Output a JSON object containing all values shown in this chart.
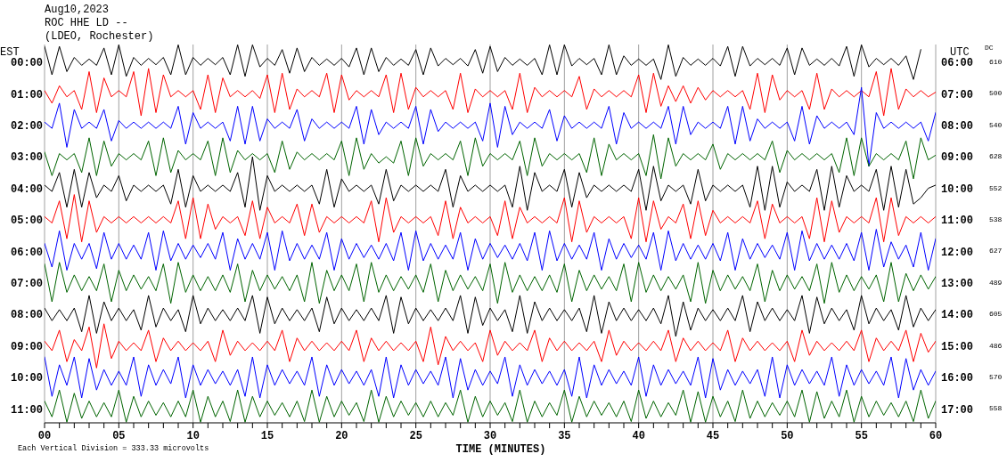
{
  "chart_data": {
    "type": "line",
    "title": "Aug10,2023",
    "subtitle": "ROC HHE LD --\n(LDEO, Rochester)",
    "xlabel": "TIME (MINUTES)",
    "ylabel": "EST",
    "y2label": "UTC",
    "annotations": [
      "Each Vertical Division = 333.33 microvolts",
      "DC",
      "610",
      "500",
      "540",
      "628",
      "552",
      "538",
      "627",
      "489",
      "605",
      "486",
      "570",
      "558"
    ],
    "x": [
      0,
      0.5,
      1,
      1.5,
      2,
      2.5,
      3,
      3.5,
      4,
      4.5,
      5,
      5.5,
      6,
      6.5,
      7,
      7.5,
      8,
      8.5,
      9,
      9.5,
      10,
      10.5,
      11,
      11.5,
      12,
      12.5,
      13,
      13.5,
      14,
      14.5,
      15,
      15.5,
      16,
      16.5,
      17,
      17.5,
      18,
      18.5,
      19,
      19.5,
      20,
      20.5,
      21,
      21.5,
      22,
      22.5,
      23,
      23.5,
      24,
      24.5,
      25,
      25.5,
      26,
      26.5,
      27,
      27.5,
      28,
      28.5,
      29,
      29.5,
      30,
      30.5,
      31,
      31.5,
      32,
      32.5,
      33,
      33.5,
      34,
      34.5,
      35,
      35.5,
      36,
      36.5,
      37,
      37.5,
      38,
      38.5,
      39,
      39.5,
      40,
      40.5,
      41,
      41.5,
      42,
      42.5,
      43,
      43.5,
      44,
      44.5,
      45,
      45.5,
      46,
      46.5,
      47,
      47.5,
      48,
      48.5,
      49,
      49.5,
      50,
      50.5,
      51,
      51.5,
      52,
      52.5,
      53,
      53.5,
      54,
      54.5,
      55,
      55.5,
      56,
      56.5,
      57,
      57.5,
      58,
      58.5,
      59,
      59.5,
      60
    ],
    "series": [
      {
        "color": "#000000",
        "values": [
          -0.5,
          0.4,
          -0.5,
          0.3,
          -0.15,
          0.1,
          -0.1,
          0.1,
          -0.45,
          0.4,
          -0.55,
          0.45,
          -0.15,
          0.1,
          -0.12,
          0.08,
          -0.15,
          0.4,
          -0.55,
          0.4,
          -0.15,
          0.1,
          -0.12,
          0.08,
          -0.15,
          0.4,
          -0.55,
          0.45,
          -0.55,
          0.15,
          -0.12,
          0.1,
          -0.4,
          0.35,
          -0.45,
          0.3,
          -0.15,
          0.1,
          -0.1,
          0.1,
          -0.12,
          0.15,
          -0.45,
          0.4,
          -0.45,
          0.3,
          -0.15,
          0.1,
          -0.1,
          0.1,
          -0.4,
          0.4,
          -0.45,
          0.12,
          -0.12,
          0.08,
          -0.12,
          0.12,
          -0.4,
          0.35,
          -0.5,
          0.3,
          -0.15,
          0.1,
          -0.1,
          0.1,
          -0.12,
          0.4,
          -0.55,
          0.4,
          -0.55,
          0.12,
          -0.12,
          0.08,
          -0.12,
          0.4,
          -0.55,
          0.4,
          -0.2,
          0.1,
          -0.1,
          0.1,
          -0.1,
          0.55,
          -0.55,
          0.45,
          -0.15,
          0.1,
          -0.1,
          0.1,
          -0.12,
          0.12,
          -0.5,
          0.45,
          -0.5,
          0.12,
          -0.12,
          0.08,
          -0.12,
          0.1,
          -0.45,
          0.4,
          -0.45,
          0.1,
          -0.1,
          0.1,
          -0.12,
          0.12,
          -0.5,
          0.45,
          -0.55,
          0.15,
          -0.12,
          0.08,
          -0.12,
          0.1,
          -0.2,
          0.55,
          -0.4,
          null,
          null
        ]
      },
      {
        "color": "#ff0000",
        "values": [
          0.9,
          1.3,
          0.75,
          1.1,
          0.9,
          1.5,
          0.3,
          1.6,
          0.5,
          1.1,
          0.9,
          1.1,
          0.3,
          1.7,
          0.2,
          1.6,
          0.4,
          1.1,
          0.9,
          1.1,
          0.9,
          1.5,
          0.4,
          1.6,
          0.5,
          1.1,
          0.9,
          1.1,
          0.9,
          1.15,
          0.4,
          1.6,
          0.35,
          1.5,
          0.85,
          1.1,
          0.9,
          1.1,
          0.35,
          1.6,
          0.4,
          1.2,
          0.9,
          1.1,
          0.9,
          1.1,
          0.4,
          1.6,
          0.35,
          1.5,
          0.8,
          1.1,
          0.9,
          1.1,
          0.9,
          1.5,
          0.35,
          1.6,
          0.85,
          1.1,
          0.9,
          1.1,
          0.9,
          1.5,
          0.35,
          1.6,
          0.8,
          1.1,
          0.9,
          1.1,
          0.9,
          1.1,
          0.45,
          1.5,
          0.85,
          1.1,
          0.9,
          1.1,
          0.9,
          1.1,
          0.4,
          1.6,
          0.35,
          1.4,
          0.75,
          1.25,
          0.75,
          1.3,
          0.8,
          1.2,
          0.9,
          1.1,
          0.9,
          1.1,
          0.9,
          1.5,
          0.35,
          1.6,
          0.4,
          1.2,
          0.9,
          1.1,
          0.9,
          1.5,
          0.35,
          1.5,
          0.85,
          1.1,
          0.9,
          1.1,
          0.9,
          1.1,
          0.3,
          1.7,
          0.2,
          1.5,
          0.85,
          1.1,
          0.9,
          1.1,
          0.95
        ]
      },
      {
        "color": "#0000ff",
        "values": [
          1.9,
          2.1,
          1.3,
          2.7,
          1.5,
          2.1,
          1.9,
          2.1,
          1.5,
          2.5,
          1.85,
          2.1,
          1.9,
          2.1,
          1.9,
          2.1,
          1.9,
          2.1,
          1.4,
          2.6,
          1.6,
          2.1,
          1.9,
          2.1,
          1.9,
          2.5,
          1.4,
          2.6,
          1.4,
          2.5,
          1.8,
          2.1,
          1.9,
          2.1,
          1.5,
          2.5,
          1.8,
          2.1,
          1.9,
          2.1,
          1.9,
          2.1,
          1.4,
          2.6,
          1.5,
          2.3,
          1.9,
          2.1,
          1.9,
          2.1,
          1.4,
          2.6,
          1.5,
          2.2,
          1.9,
          2.1,
          1.9,
          2.1,
          1.9,
          2.5,
          1.3,
          2.7,
          1.4,
          2.3,
          1.9,
          2.1,
          1.9,
          2.1,
          1.5,
          2.5,
          1.7,
          2.1,
          1.9,
          2.1,
          1.9,
          2.1,
          1.4,
          2.6,
          1.6,
          2.1,
          1.9,
          2.1,
          1.9,
          2.1,
          1.4,
          2.6,
          1.4,
          2.3,
          1.9,
          2.1,
          1.9,
          2.1,
          1.4,
          2.6,
          1.4,
          2.5,
          1.8,
          2.1,
          1.9,
          2.1,
          1.9,
          2.5,
          1.4,
          2.6,
          1.7,
          2.1,
          1.9,
          2.1,
          1.9,
          2.3,
          0.8,
          3.3,
          1.6,
          2.1,
          1.9,
          2.1,
          1.9,
          2.1,
          1.9,
          2.5,
          1.6
        ]
      },
      {
        "color": "#006400",
        "values": [
          2.85,
          3.6,
          2.9,
          3.1,
          2.9,
          3.5,
          2.4,
          3.6,
          2.5,
          3.3,
          2.9,
          3.1,
          2.9,
          3.1,
          2.5,
          3.6,
          2.4,
          3.5,
          2.8,
          3.1,
          2.9,
          3.1,
          2.5,
          3.6,
          2.4,
          3.5,
          2.8,
          3.1,
          2.9,
          3.1,
          2.9,
          3.5,
          2.5,
          3.4,
          2.85,
          3.1,
          2.9,
          3.1,
          2.9,
          3.1,
          2.5,
          3.6,
          2.4,
          3.4,
          2.9,
          3.2,
          3.0,
          3.2,
          2.5,
          3.6,
          2.4,
          3.3,
          2.9,
          3.1,
          2.9,
          3.1,
          2.5,
          3.6,
          2.4,
          3.3,
          2.9,
          3.1,
          2.9,
          3.1,
          2.5,
          3.6,
          2.4,
          3.3,
          2.9,
          3.1,
          2.9,
          3.1,
          2.9,
          3.5,
          2.4,
          3.6,
          2.6,
          3.1,
          2.9,
          3.1,
          2.9,
          3.6,
          2.3,
          3.7,
          2.4,
          3.3,
          2.9,
          3.1,
          2.9,
          3.1,
          2.6,
          3.4,
          2.9,
          3.1,
          2.9,
          3.1,
          2.9,
          3.1,
          2.5,
          3.5,
          2.8,
          3.1,
          2.9,
          3.1,
          2.9,
          3.1,
          2.9,
          3.5,
          2.4,
          3.6,
          2.4,
          3.3,
          2.9,
          3.1,
          2.9,
          3.1,
          2.5,
          3.7,
          2.4,
          3.1,
          2.95
        ]
      },
      {
        "color": "#000000",
        "values": [
          3.9,
          4.1,
          3.5,
          4.6,
          3.4,
          4.6,
          3.5,
          4.3,
          3.9,
          4.1,
          3.6,
          4.4,
          3.9,
          4.1,
          3.9,
          4.1,
          3.9,
          4.5,
          3.4,
          4.6,
          3.6,
          4.1,
          3.9,
          4.1,
          3.9,
          4.1,
          3.5,
          4.6,
          3.0,
          4.7,
          3.6,
          4.1,
          3.9,
          4.1,
          3.9,
          4.1,
          3.9,
          4.5,
          3.4,
          4.6,
          3.7,
          4.1,
          3.9,
          4.1,
          3.9,
          4.5,
          3.4,
          4.4,
          3.9,
          4.1,
          3.9,
          4.1,
          3.9,
          4.1,
          3.4,
          4.6,
          3.6,
          4.1,
          3.9,
          4.1,
          3.9,
          4.1,
          3.9,
          4.6,
          3.3,
          4.7,
          3.5,
          4.1,
          3.9,
          4.1,
          3.4,
          4.6,
          3.5,
          4.3,
          3.9,
          4.1,
          3.9,
          4.1,
          3.9,
          4.1,
          3.4,
          4.7,
          3.3,
          4.4,
          3.9,
          4.1,
          3.9,
          4.5,
          3.4,
          4.4,
          3.9,
          4.1,
          3.9,
          4.1,
          3.9,
          4.6,
          3.3,
          4.7,
          3.3,
          4.6,
          3.8,
          4.1,
          3.9,
          4.1,
          3.4,
          4.7,
          3.3,
          4.6,
          3.6,
          4.1,
          3.9,
          4.1,
          3.4,
          4.7,
          3.3,
          4.6,
          3.4,
          4.5,
          4.3,
          4.0,
          3.9
        ]
      },
      {
        "color": "#ff0000",
        "values": [
          4.9,
          5.1,
          4.4,
          5.6,
          4.2,
          5.7,
          4.4,
          5.4,
          4.9,
          5.1,
          4.9,
          5.1,
          4.9,
          5.1,
          4.9,
          5.1,
          4.9,
          5.1,
          4.4,
          5.6,
          4.3,
          5.6,
          4.5,
          5.3,
          4.9,
          5.1,
          4.9,
          5.5,
          4.4,
          5.6,
          4.6,
          5.1,
          4.9,
          5.1,
          4.5,
          5.5,
          4.5,
          5.4,
          4.9,
          5.1,
          4.9,
          5.1,
          4.9,
          5.1,
          4.4,
          5.7,
          4.3,
          5.4,
          4.9,
          5.1,
          4.9,
          5.1,
          4.9,
          5.5,
          4.4,
          5.6,
          4.6,
          5.1,
          4.9,
          5.1,
          4.9,
          5.5,
          4.4,
          5.6,
          4.6,
          5.1,
          4.9,
          5.1,
          4.9,
          5.1,
          4.3,
          5.7,
          4.4,
          5.4,
          4.9,
          5.1,
          4.9,
          5.1,
          4.9,
          5.6,
          4.3,
          5.7,
          4.4,
          5.3,
          4.9,
          5.1,
          4.5,
          5.6,
          4.4,
          5.5,
          4.7,
          5.1,
          4.9,
          5.1,
          4.9,
          5.1,
          4.4,
          5.6,
          4.5,
          5.1,
          4.9,
          5.1,
          4.9,
          5.6,
          4.3,
          5.7,
          4.4,
          5.4,
          4.9,
          5.1,
          4.9,
          5.1,
          4.3,
          5.7,
          4.3,
          5.5,
          4.9,
          5.1,
          4.9,
          5.1,
          4.9
        ]
      },
      {
        "color": "#0000ff",
        "values": [
          5.75,
          6.5,
          5.35,
          6.6,
          5.75,
          6.25,
          5.75,
          6.55,
          5.4,
          6.25,
          5.75,
          6.25,
          5.8,
          6.25,
          5.4,
          6.6,
          5.35,
          6.3,
          5.75,
          6.25,
          5.8,
          6.2,
          5.75,
          6.25,
          5.4,
          6.6,
          5.6,
          6.25,
          5.75,
          6.25,
          5.4,
          6.6,
          5.35,
          6.3,
          5.75,
          6.25,
          5.8,
          6.25,
          5.4,
          6.6,
          5.6,
          6.25,
          5.75,
          6.2,
          5.8,
          6.25,
          5.75,
          6.3,
          5.4,
          6.6,
          5.35,
          6.3,
          5.75,
          6.25,
          5.8,
          6.25,
          5.4,
          6.6,
          5.6,
          6.25,
          5.75,
          6.2,
          5.8,
          6.25,
          5.75,
          6.3,
          5.4,
          6.6,
          5.35,
          6.3,
          5.75,
          6.25,
          5.8,
          6.25,
          5.4,
          6.6,
          5.6,
          6.25,
          5.75,
          6.2,
          5.8,
          6.25,
          5.4,
          6.6,
          5.35,
          6.3,
          5.75,
          6.25,
          5.8,
          6.25,
          5.75,
          6.3,
          5.4,
          6.6,
          5.6,
          6.25,
          5.75,
          6.2,
          5.8,
          6.25,
          5.4,
          6.6,
          5.35,
          6.3,
          5.75,
          6.25,
          5.8,
          6.25,
          5.75,
          6.3,
          5.4,
          6.6,
          5.3,
          6.5,
          5.7,
          6.25,
          5.8,
          6.5,
          5.4,
          6.6,
          5.6
        ]
      },
      {
        "color": "#006400",
        "values": [
          6.4,
          7.6,
          6.35,
          7.3,
          6.75,
          7.25,
          6.8,
          7.25,
          6.4,
          7.6,
          6.6,
          7.25,
          6.75,
          7.2,
          6.8,
          7.25,
          6.4,
          7.65,
          6.35,
          7.3,
          6.75,
          7.25,
          6.8,
          7.25,
          6.75,
          7.3,
          6.4,
          7.6,
          6.6,
          7.25,
          6.75,
          7.2,
          6.8,
          7.25,
          6.75,
          7.6,
          6.35,
          7.65,
          6.6,
          7.25,
          6.75,
          7.25,
          6.4,
          7.6,
          6.35,
          7.3,
          6.75,
          7.25,
          6.8,
          7.2,
          6.75,
          7.3,
          6.4,
          7.6,
          6.6,
          7.25,
          6.75,
          7.2,
          6.8,
          7.25,
          6.4,
          7.65,
          6.35,
          7.3,
          6.75,
          7.25,
          6.8,
          7.25,
          6.75,
          7.3,
          6.4,
          7.6,
          6.6,
          7.25,
          6.75,
          7.2,
          6.8,
          7.25,
          6.4,
          7.6,
          6.35,
          7.3,
          6.75,
          7.25,
          6.8,
          7.2,
          6.75,
          7.6,
          6.35,
          7.65,
          6.6,
          7.25,
          6.75,
          7.2,
          6.8,
          7.25,
          6.4,
          7.6,
          6.6,
          7.25,
          6.75,
          7.2,
          6.8,
          7.25,
          6.4,
          7.65,
          6.35,
          7.3,
          6.75,
          7.25,
          6.8,
          7.2,
          6.75,
          7.6,
          6.35,
          7.6,
          6.7,
          7.25,
          6.75,
          7.2,
          6.8
        ]
      },
      {
        "color": "#000000",
        "values": [
          7.8,
          8.2,
          7.85,
          8.2,
          7.8,
          8.55,
          7.4,
          8.6,
          7.6,
          8.2,
          7.8,
          8.2,
          7.85,
          8.5,
          7.4,
          8.4,
          7.8,
          8.2,
          7.85,
          8.55,
          7.4,
          8.3,
          7.8,
          8.2,
          7.85,
          8.2,
          7.8,
          8.2,
          7.4,
          8.6,
          7.45,
          8.3,
          7.8,
          8.2,
          7.85,
          8.2,
          7.8,
          8.55,
          7.45,
          8.3,
          7.8,
          8.2,
          7.85,
          8.2,
          7.8,
          8.2,
          7.4,
          8.6,
          7.45,
          8.3,
          7.8,
          8.2,
          7.85,
          8.2,
          7.8,
          8.2,
          7.4,
          8.6,
          7.45,
          8.35,
          7.8,
          8.2,
          7.85,
          8.55,
          7.4,
          8.6,
          7.6,
          8.2,
          7.8,
          8.2,
          7.85,
          8.2,
          7.8,
          8.55,
          7.4,
          8.6,
          7.6,
          8.2,
          7.8,
          8.2,
          7.85,
          8.2,
          7.8,
          8.3,
          7.4,
          8.7,
          7.6,
          8.5,
          7.8,
          8.2,
          7.85,
          8.2,
          7.8,
          8.2,
          7.4,
          8.55,
          7.6,
          8.2,
          7.8,
          8.2,
          7.85,
          8.2,
          7.4,
          8.6,
          7.45,
          8.3,
          7.8,
          8.2,
          7.85,
          8.5,
          7.4,
          8.3,
          7.8,
          8.2,
          7.85,
          8.5,
          7.4,
          8.4,
          7.8,
          8.2,
          7.85
        ]
      },
      {
        "color": "#ff0000",
        "values": [
          8.85,
          9.15,
          8.5,
          9.5,
          8.8,
          9.15,
          8.4,
          9.7,
          8.3,
          9.4,
          8.85,
          9.15,
          8.9,
          9.15,
          8.5,
          9.5,
          8.75,
          9.15,
          8.85,
          9.15,
          8.9,
          9.15,
          8.85,
          9.5,
          8.5,
          9.3,
          8.85,
          9.15,
          8.9,
          9.15,
          8.85,
          9.15,
          8.5,
          9.5,
          8.75,
          9.15,
          8.85,
          9.15,
          8.9,
          9.15,
          8.85,
          9.15,
          8.5,
          9.5,
          8.75,
          9.15,
          8.85,
          9.15,
          8.9,
          9.15,
          8.85,
          9.5,
          8.4,
          9.6,
          8.7,
          9.15,
          8.85,
          9.15,
          8.9,
          9.5,
          8.5,
          9.3,
          8.85,
          9.15,
          8.9,
          9.15,
          8.5,
          9.5,
          8.75,
          9.15,
          8.85,
          9.15,
          8.9,
          9.15,
          8.85,
          9.5,
          8.5,
          9.3,
          8.85,
          9.15,
          8.9,
          9.15,
          8.85,
          9.15,
          8.5,
          9.5,
          8.75,
          9.15,
          8.85,
          9.15,
          8.9,
          9.15,
          8.5,
          9.5,
          8.75,
          9.15,
          8.85,
          9.15,
          8.9,
          9.15,
          8.85,
          9.5,
          8.5,
          9.3,
          8.85,
          9.15,
          8.9,
          9.15,
          8.85,
          9.15,
          8.5,
          9.5,
          8.75,
          9.15,
          8.85,
          9.15,
          8.5,
          9.5,
          8.6,
          9.2,
          8.85
        ]
      },
      {
        "color": "#0000ff",
        "values": [
          9.35,
          10.6,
          9.6,
          10.25,
          9.35,
          10.65,
          9.4,
          10.4,
          9.75,
          10.25,
          9.8,
          10.25,
          9.35,
          10.6,
          9.6,
          10.25,
          9.75,
          10.2,
          9.35,
          10.65,
          9.6,
          10.25,
          9.75,
          10.2,
          9.8,
          10.25,
          9.75,
          10.6,
          9.35,
          10.65,
          9.6,
          10.25,
          9.75,
          10.2,
          9.8,
          10.25,
          9.35,
          10.6,
          9.6,
          10.25,
          9.75,
          10.2,
          9.8,
          10.25,
          9.75,
          10.6,
          9.35,
          10.65,
          9.6,
          10.25,
          9.75,
          10.2,
          9.8,
          10.25,
          9.35,
          10.65,
          9.4,
          10.4,
          9.75,
          10.25,
          9.8,
          10.2,
          9.35,
          10.6,
          9.6,
          10.25,
          9.75,
          10.2,
          9.8,
          10.25,
          9.75,
          10.6,
          9.35,
          10.65,
          9.6,
          10.25,
          9.75,
          10.2,
          9.8,
          10.25,
          9.35,
          10.6,
          9.6,
          10.25,
          9.75,
          10.2,
          9.8,
          10.25,
          9.35,
          10.65,
          9.4,
          10.4,
          9.75,
          10.25,
          9.8,
          10.2,
          9.75,
          10.6,
          9.35,
          10.65,
          9.6,
          10.25,
          9.75,
          10.2,
          9.8,
          10.25,
          9.35,
          10.6,
          9.6,
          10.25,
          9.75,
          10.2,
          9.8,
          10.25,
          9.35,
          10.65,
          9.4,
          10.4,
          9.75,
          10.25,
          9.8
        ]
      },
      {
        "color": "#006400",
        "values": [
          10.75,
          11.25,
          10.4,
          11.42,
          10.5,
          11.3,
          10.75,
          11.25,
          10.8,
          11.25,
          10.4,
          11.42,
          10.6,
          11.25,
          10.75,
          11.2,
          10.8,
          11.25,
          10.75,
          11.25,
          10.4,
          11.42,
          10.6,
          11.25,
          10.75,
          11.4,
          10.4,
          11.42,
          10.6,
          11.25,
          10.75,
          11.2,
          10.8,
          11.25,
          10.75,
          11.4,
          10.4,
          11.42,
          10.6,
          11.25,
          10.75,
          11.2,
          10.8,
          11.4,
          10.4,
          11.42,
          10.6,
          11.25,
          10.75,
          11.2,
          10.8,
          11.25,
          10.75,
          11.25,
          10.8,
          11.2,
          10.4,
          11.42,
          10.6,
          11.25,
          10.75,
          11.2,
          10.8,
          11.4,
          10.4,
          11.42,
          10.75,
          11.25,
          10.8,
          11.2,
          10.4,
          11.42,
          10.6,
          11.25,
          10.75,
          11.2,
          10.8,
          11.25,
          10.75,
          11.4,
          10.4,
          11.3,
          10.75,
          11.25,
          10.8,
          11.2,
          10.4,
          11.42,
          10.45,
          11.42,
          10.6,
          11.25,
          10.75,
          11.4,
          10.4,
          11.3,
          10.75,
          11.25,
          10.8,
          11.2,
          10.75,
          11.25,
          10.4,
          11.42,
          10.45,
          11.3,
          10.75,
          11.25,
          10.4,
          11.42,
          10.6,
          11.25,
          10.75,
          11.2,
          10.8,
          11.25,
          10.75,
          11.4,
          10.4,
          11.3,
          10.75
        ]
      }
    ],
    "xlim": [
      0,
      60
    ],
    "xticks": [
      {
        "value": 0,
        "label": "00"
      },
      {
        "value": 1,
        "label": null
      },
      {
        "value": 2,
        "label": null
      },
      {
        "value": 3,
        "label": null
      },
      {
        "value": 4,
        "label": null
      },
      {
        "value": 5,
        "label": "05"
      },
      {
        "value": 6,
        "label": null
      },
      {
        "value": 7,
        "label": null
      },
      {
        "value": 8,
        "label": null
      },
      {
        "value": 9,
        "label": null
      },
      10,
      {
        "value": 11,
        "label": null
      },
      {
        "value": 12,
        "label": null
      },
      {
        "value": 13,
        "label": null
      },
      {
        "value": 14,
        "label": null
      },
      15,
      {
        "value": 16,
        "label": null
      },
      {
        "value": 17,
        "label": null
      },
      {
        "value": 18,
        "label": null
      },
      {
        "value": 19,
        "label": null
      },
      20,
      {
        "value": 21,
        "label": null
      },
      {
        "value": 22,
        "label": null
      },
      {
        "value": 23,
        "label": null
      },
      {
        "value": 24,
        "label": null
      },
      25,
      {
        "value": 26,
        "label": null
      },
      {
        "value": 27,
        "label": null
      },
      {
        "value": 28,
        "label": null
      },
      {
        "value": 29,
        "label": null
      },
      30,
      {
        "value": 31,
        "label": null
      },
      {
        "value": 32,
        "label": null
      },
      {
        "value": 33,
        "label": null
      },
      {
        "value": 34,
        "label": null
      },
      35,
      {
        "value": 36,
        "label": null
      },
      {
        "value": 37,
        "label": null
      },
      {
        "value": 38,
        "label": null
      },
      {
        "value": 39,
        "label": null
      },
      40,
      {
        "value": 41,
        "label": null
      },
      {
        "value": 42,
        "label": null
      },
      {
        "value": 43,
        "label": null
      },
      {
        "value": 44,
        "label": null
      },
      45,
      {
        "value": 46,
        "label": null
      },
      {
        "value": 47,
        "label": null
      },
      {
        "value": 48,
        "label": null
      },
      {
        "value": 49,
        "label": null
      },
      50,
      {
        "value": 51,
        "label": null
      },
      {
        "value": 52,
        "label": null
      },
      {
        "value": 53,
        "label": null
      },
      {
        "value": 54,
        "label": null
      },
      55,
      {
        "value": 56,
        "label": null
      },
      {
        "value": 57,
        "label": null
      },
      {
        "value": 58,
        "label": null
      },
      {
        "value": 59,
        "label": null
      },
      60
    ],
    "ylim": [
      11.44,
      -0.56
    ],
    "yticks": [
      {
        "value": 0,
        "label": "00:00"
      },
      {
        "value": 1,
        "label": "01:00"
      },
      {
        "value": 2,
        "label": "02:00"
      },
      {
        "value": 3,
        "label": "03:00"
      },
      {
        "value": 4,
        "label": "04:00"
      },
      {
        "value": 5,
        "label": "05:00"
      },
      {
        "value": 6,
        "label": "06:00"
      },
      {
        "value": 7,
        "label": "07:00"
      },
      {
        "value": 8,
        "label": "08:00"
      },
      {
        "value": 9,
        "label": "09:00"
      },
      {
        "value": 10,
        "label": "10:00"
      },
      {
        "value": 11,
        "label": "11:00"
      }
    ],
    "y2lim": [
      17.44,
      5.44
    ],
    "y2ticks": [
      {
        "value": 6,
        "label": "06:00"
      },
      {
        "value": 7,
        "label": "07:00"
      },
      {
        "value": 8,
        "label": "08:00"
      },
      {
        "value": 9,
        "label": "09:00"
      },
      {
        "value": 10,
        "label": "10:00"
      },
      {
        "value": 11,
        "label": "11:00"
      },
      {
        "value": 12,
        "label": "12:00"
      },
      {
        "value": 13,
        "label": "13:00"
      },
      {
        "value": 14,
        "label": "14:00"
      },
      {
        "value": 15,
        "label": "15:00"
      },
      {
        "value": 16,
        "label": "16:00"
      },
      {
        "value": 17,
        "label": "17:00"
      }
    ],
    "grid": "x"
  }
}
